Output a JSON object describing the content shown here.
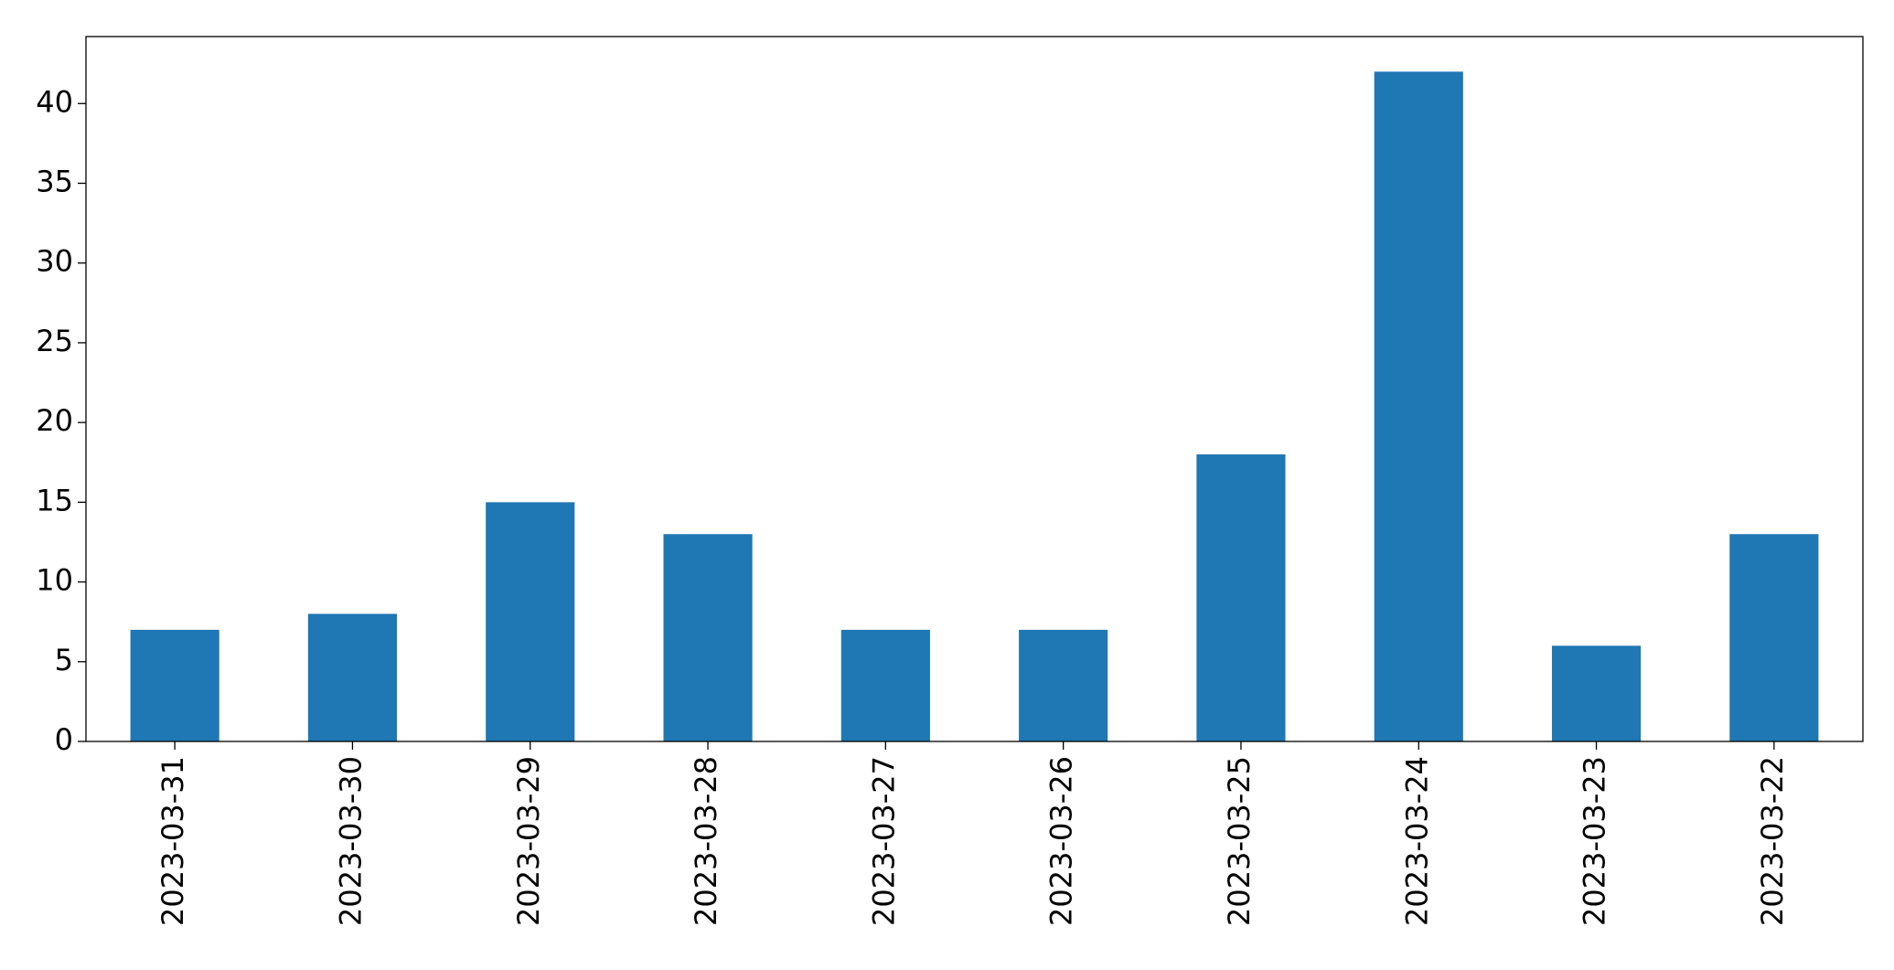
{
  "chart_data": {
    "type": "bar",
    "categories": [
      "2023-03-31",
      "2023-03-30",
      "2023-03-29",
      "2023-03-28",
      "2023-03-27",
      "2023-03-26",
      "2023-03-25",
      "2023-03-24",
      "2023-03-23",
      "2023-03-22"
    ],
    "values": [
      7,
      8,
      15,
      13,
      7,
      7,
      18,
      42,
      6,
      13
    ],
    "color": "#1f77b4",
    "ylim": [
      0,
      44.2
    ],
    "yticks": [
      0,
      5,
      10,
      15,
      20,
      25,
      30,
      35,
      40
    ],
    "grid": false
  }
}
